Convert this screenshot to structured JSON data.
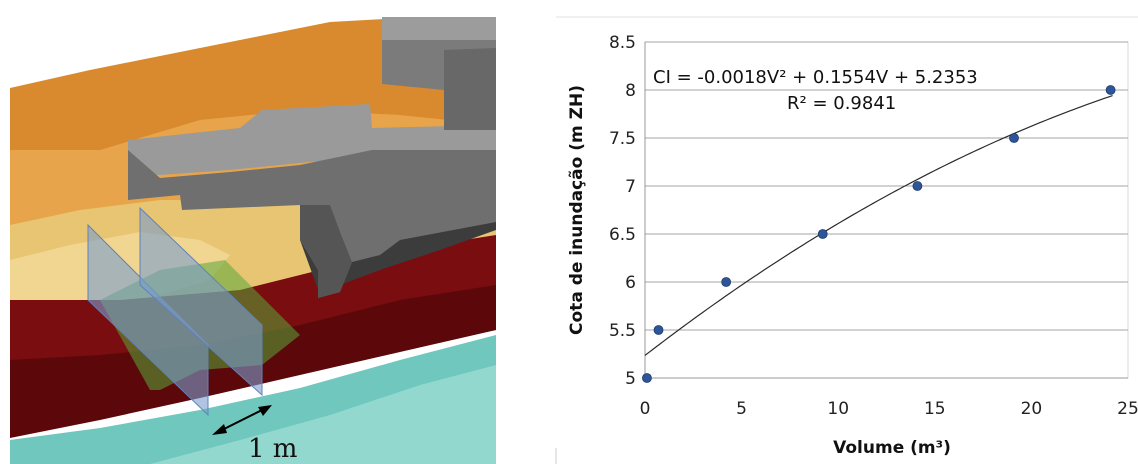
{
  "render": {
    "scale_label": "1 m",
    "colors": {
      "terrain_orange": "#d98a2e",
      "terrain_sand": "#e8c572",
      "lava_red": "#7a0d0f",
      "sea_teal": "#6fc7bd",
      "building_gray": "#6f6f6f",
      "plane_blue": "#7a9ccf",
      "plane_green": "#5aa83a",
      "marker_blue": "#2e5597"
    }
  },
  "chart_data": {
    "type": "scatter",
    "title": "",
    "xlabel": "Volume (m³)",
    "ylabel": "Cota de inundação (m ZH)",
    "xlim": [
      0,
      25
    ],
    "ylim": [
      5,
      8.5
    ],
    "x_ticks": [
      0,
      5,
      10,
      15,
      20,
      25
    ],
    "y_ticks": [
      5,
      5.5,
      6,
      6.5,
      7,
      7.5,
      8,
      8.5
    ],
    "x_tick_labels": [
      "0",
      "5",
      "10",
      "15",
      "20",
      "25"
    ],
    "y_tick_labels": [
      "5",
      "5.5",
      "6",
      "6.5",
      "7",
      "7.5",
      "8",
      "8.5"
    ],
    "grid": "horizontal",
    "legend": "none",
    "points": [
      {
        "x": 0.1,
        "y": 5.0
      },
      {
        "x": 0.7,
        "y": 5.5
      },
      {
        "x": 4.2,
        "y": 6.0
      },
      {
        "x": 9.2,
        "y": 6.5
      },
      {
        "x": 14.1,
        "y": 7.0
      },
      {
        "x": 19.1,
        "y": 7.5
      },
      {
        "x": 24.1,
        "y": 8.0
      }
    ],
    "trendline": {
      "type": "polynomial",
      "coefficients": {
        "a": -0.0018,
        "b": 0.1554,
        "c": 5.2353
      },
      "equation": "CI = -0.0018V² + 0.1554V + 5.2353",
      "r_squared": "R² = 0.9841"
    }
  }
}
